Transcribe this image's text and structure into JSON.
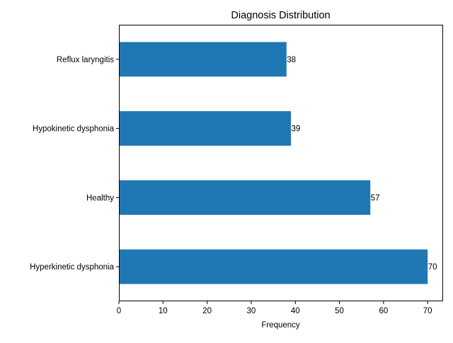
{
  "chart_data": {
    "type": "bar",
    "orientation": "horizontal",
    "title": "Diagnosis Distribution",
    "xlabel": "Frequency",
    "ylabel": "",
    "xlim": [
      0,
      73.5
    ],
    "xticks": [
      0,
      10,
      20,
      30,
      40,
      50,
      60,
      70
    ],
    "grid": false,
    "categories": [
      "Hyperkinetic dysphonia",
      "Healthy",
      "Hypokinetic dysphonia",
      "Reflux laryngitis"
    ],
    "values": [
      70,
      57,
      39,
      38
    ],
    "bar_color": "#1f77b4"
  }
}
